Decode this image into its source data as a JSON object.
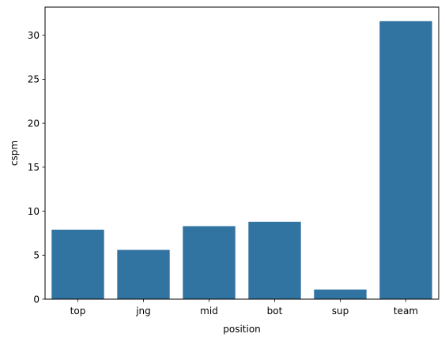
{
  "chart_data": {
    "type": "bar",
    "categories": [
      "top",
      "jng",
      "mid",
      "bot",
      "sup",
      "team"
    ],
    "values": [
      7.9,
      5.6,
      8.3,
      8.8,
      1.1,
      31.6
    ],
    "xlabel": "position",
    "ylabel": "cspm",
    "ylim": [
      0,
      33.2
    ],
    "yticks": [
      0,
      5,
      10,
      15,
      20,
      25,
      30
    ],
    "ytick_labels": [
      "0",
      "5",
      "10",
      "15",
      "20",
      "25",
      "30"
    ],
    "grid": false,
    "bar_color": "#3274a1"
  }
}
